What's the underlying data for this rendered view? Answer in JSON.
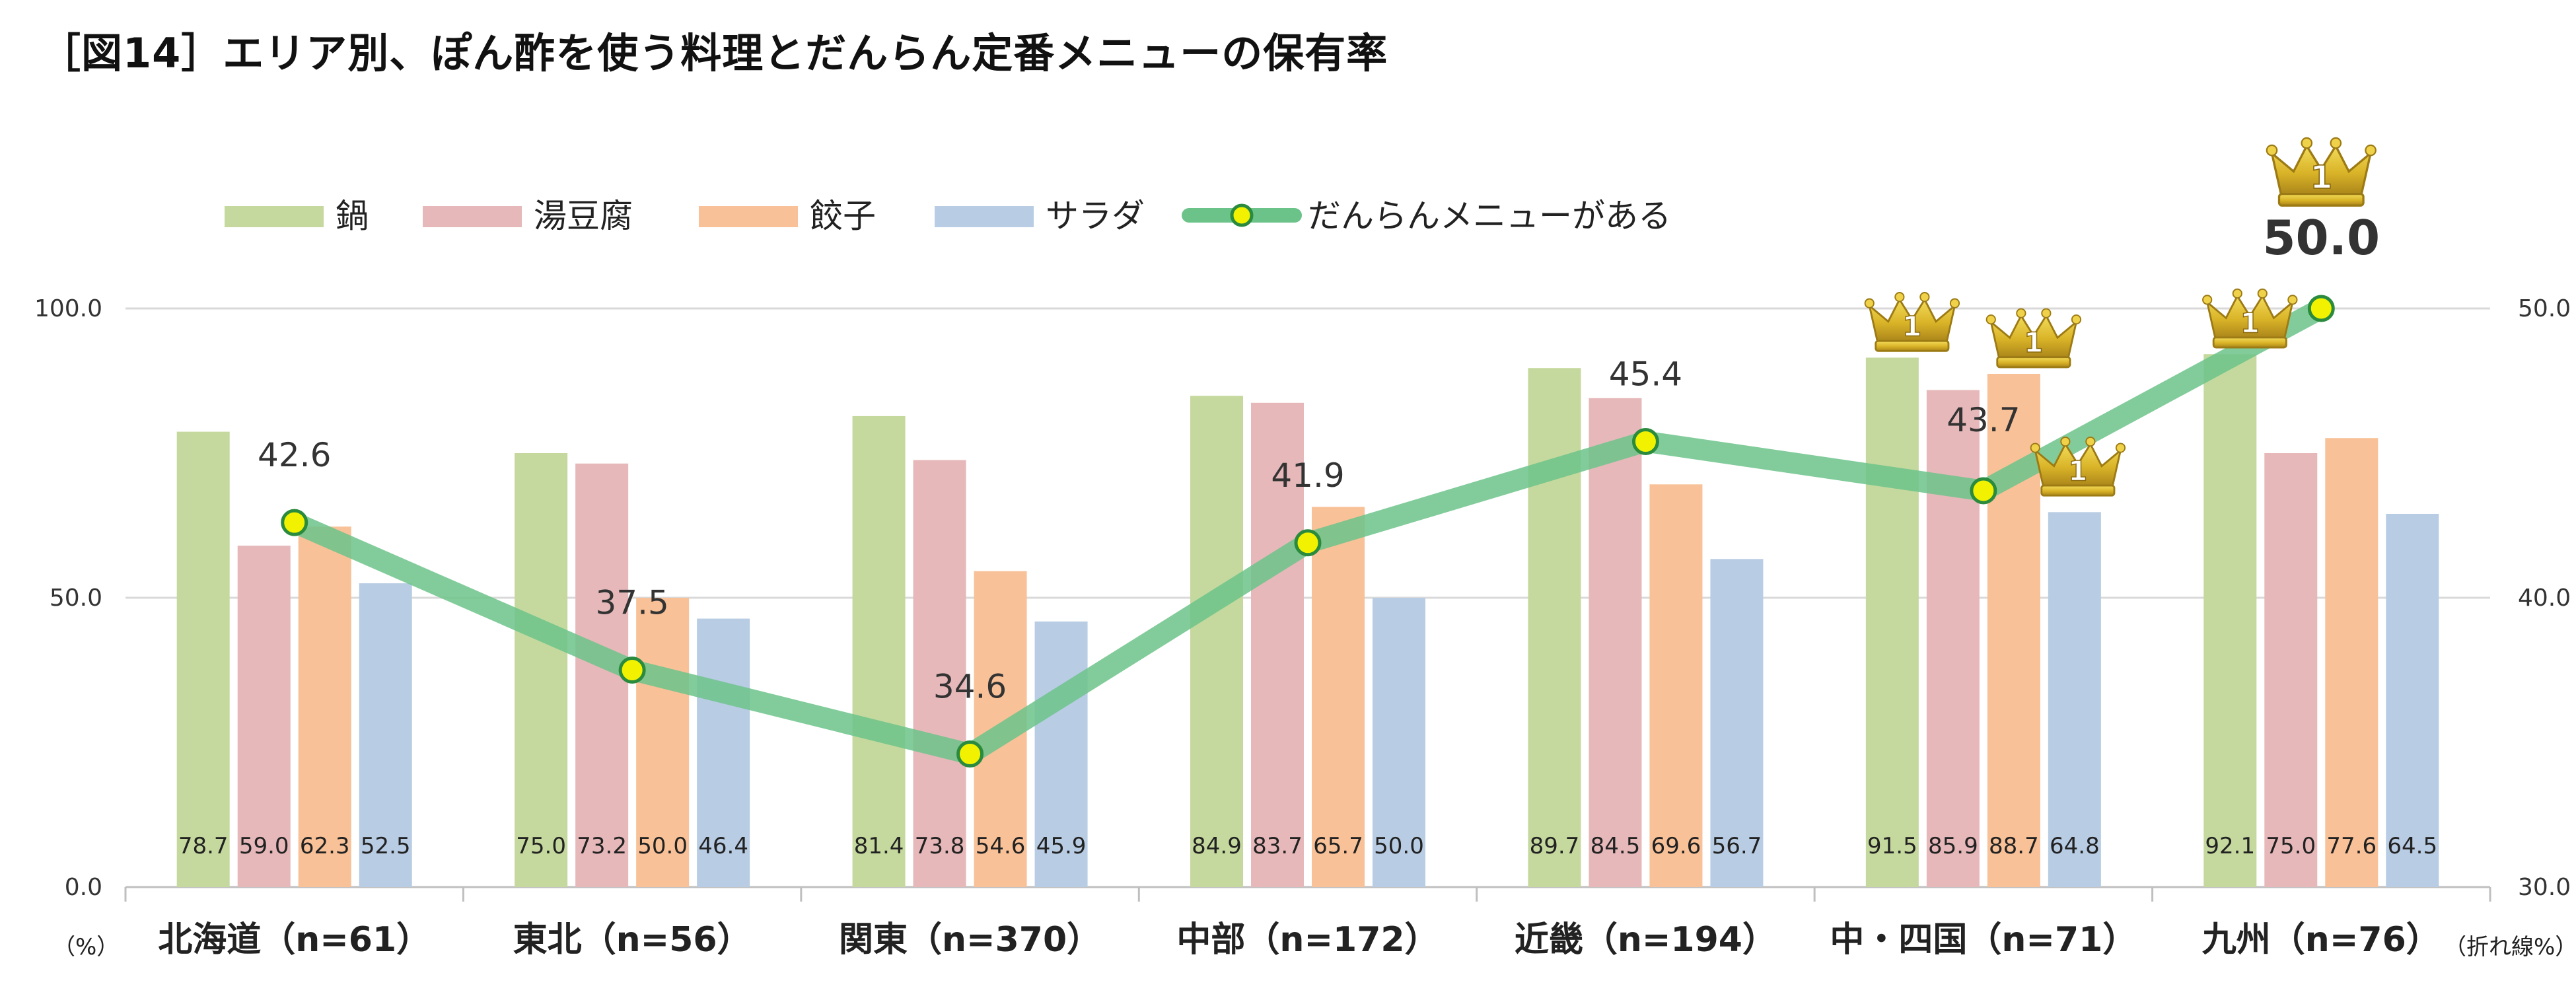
{
  "title": "［図14］エリア別、ぽん酢を使う料理とだんらん定番メニューの保有率",
  "chart_data": {
    "type": "bar",
    "title": "［図14］エリア別、ぽん酢を使う料理とだんらん定番メニューの保有率",
    "categories": [
      "北海道（n=61）",
      "東北（n=56）",
      "関東（n=370）",
      "中部（n=172）",
      "近畿（n=194）",
      "中・四国（n=71）",
      "九州（n=76）"
    ],
    "series": [
      {
        "name": "鍋",
        "type": "bar",
        "axis": "left",
        "color": "#c5d99e",
        "values": [
          78.7,
          75.0,
          81.4,
          84.9,
          89.7,
          91.5,
          92.1
        ]
      },
      {
        "name": "湯豆腐",
        "type": "bar",
        "axis": "left",
        "color": "#e6b8b9",
        "values": [
          59.0,
          73.2,
          73.8,
          83.7,
          84.5,
          85.9,
          75.0
        ]
      },
      {
        "name": "餃子",
        "type": "bar",
        "axis": "left",
        "color": "#f8c198",
        "values": [
          62.3,
          50.0,
          54.6,
          65.7,
          69.6,
          88.7,
          77.6
        ]
      },
      {
        "name": "サラダ",
        "type": "bar",
        "axis": "left",
        "color": "#b8cce4",
        "values": [
          52.5,
          46.4,
          45.9,
          50.0,
          56.7,
          64.8,
          64.5
        ]
      },
      {
        "name": "だんらんメニューがある",
        "type": "line",
        "axis": "right",
        "color": "#6cc38a",
        "marker_color": "#f2f200",
        "values": [
          42.6,
          37.5,
          34.6,
          41.9,
          45.4,
          43.7,
          50.0
        ]
      }
    ],
    "bar_value_labels": [
      [
        "78.7",
        "59.0",
        "62.3",
        "52.5"
      ],
      [
        "75.0",
        "73.2",
        "50.0",
        "46.4"
      ],
      [
        "81.4",
        "73.8",
        "54.6",
        "45.9"
      ],
      [
        "84.9",
        "83.7",
        "65.7",
        "50.0"
      ],
      [
        "89.7",
        "84.5",
        "69.6",
        "56.7"
      ],
      [
        "91.5",
        "85.9",
        "88.7",
        "64.8"
      ],
      [
        "92.1",
        "75.0",
        "77.6",
        "64.5"
      ]
    ],
    "line_value_labels": [
      "42.6",
      "37.5",
      "34.6",
      "41.9",
      "45.4",
      "43.7",
      "50.0"
    ],
    "left_axis": {
      "min": 0,
      "max": 100,
      "ticks": [
        "0.0",
        "50.0",
        "100.0"
      ],
      "unit_label": "（%）"
    },
    "right_axis": {
      "min": 30,
      "max": 50,
      "ticks": [
        "30.0",
        "40.0",
        "50.0"
      ],
      "unit_label": "（折れ線%）"
    },
    "crown_badge": "1",
    "crowns": [
      {
        "category": 5,
        "series": 0
      },
      {
        "category": 5,
        "series": 2
      },
      {
        "category": 5,
        "series": 3
      },
      {
        "category": 6,
        "series": 0
      },
      {
        "category": 6,
        "series": 4
      }
    ],
    "legend_position": "top",
    "grid": true
  }
}
